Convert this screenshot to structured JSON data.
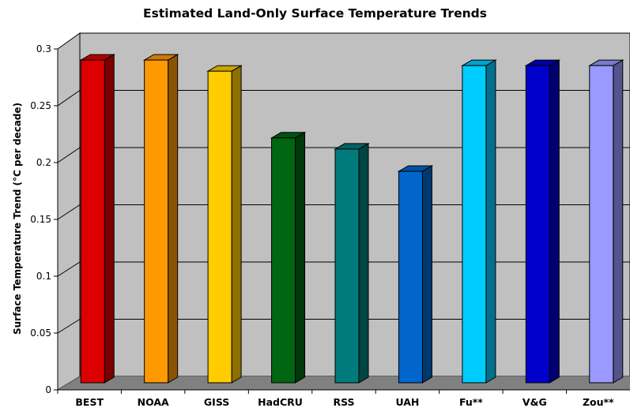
{
  "chart_data": {
    "type": "bar",
    "title": "Estimated Land-Only Surface Temperature Trends",
    "xlabel": "",
    "ylabel": "Surface Temperature Trend (°C per decade)",
    "ylim": [
      0,
      0.3
    ],
    "yticks": [
      "0",
      "0.05",
      "0.1",
      "0.15",
      "0.2",
      "0.25",
      "0.3"
    ],
    "grid": true,
    "categories": [
      "BEST",
      "NOAA",
      "GISS",
      "HadCRU",
      "RSS",
      "UAH",
      "Fu**",
      "V&G",
      "Zou**"
    ],
    "values": [
      0.29,
      0.29,
      0.28,
      0.22,
      0.21,
      0.19,
      0.285,
      0.285,
      0.285
    ],
    "colors": [
      "#dd0000",
      "#ff9900",
      "#ffcc00",
      "#006611",
      "#007b7b",
      "#0066cc",
      "#00ccff",
      "#0000cc",
      "#9999ff"
    ]
  }
}
